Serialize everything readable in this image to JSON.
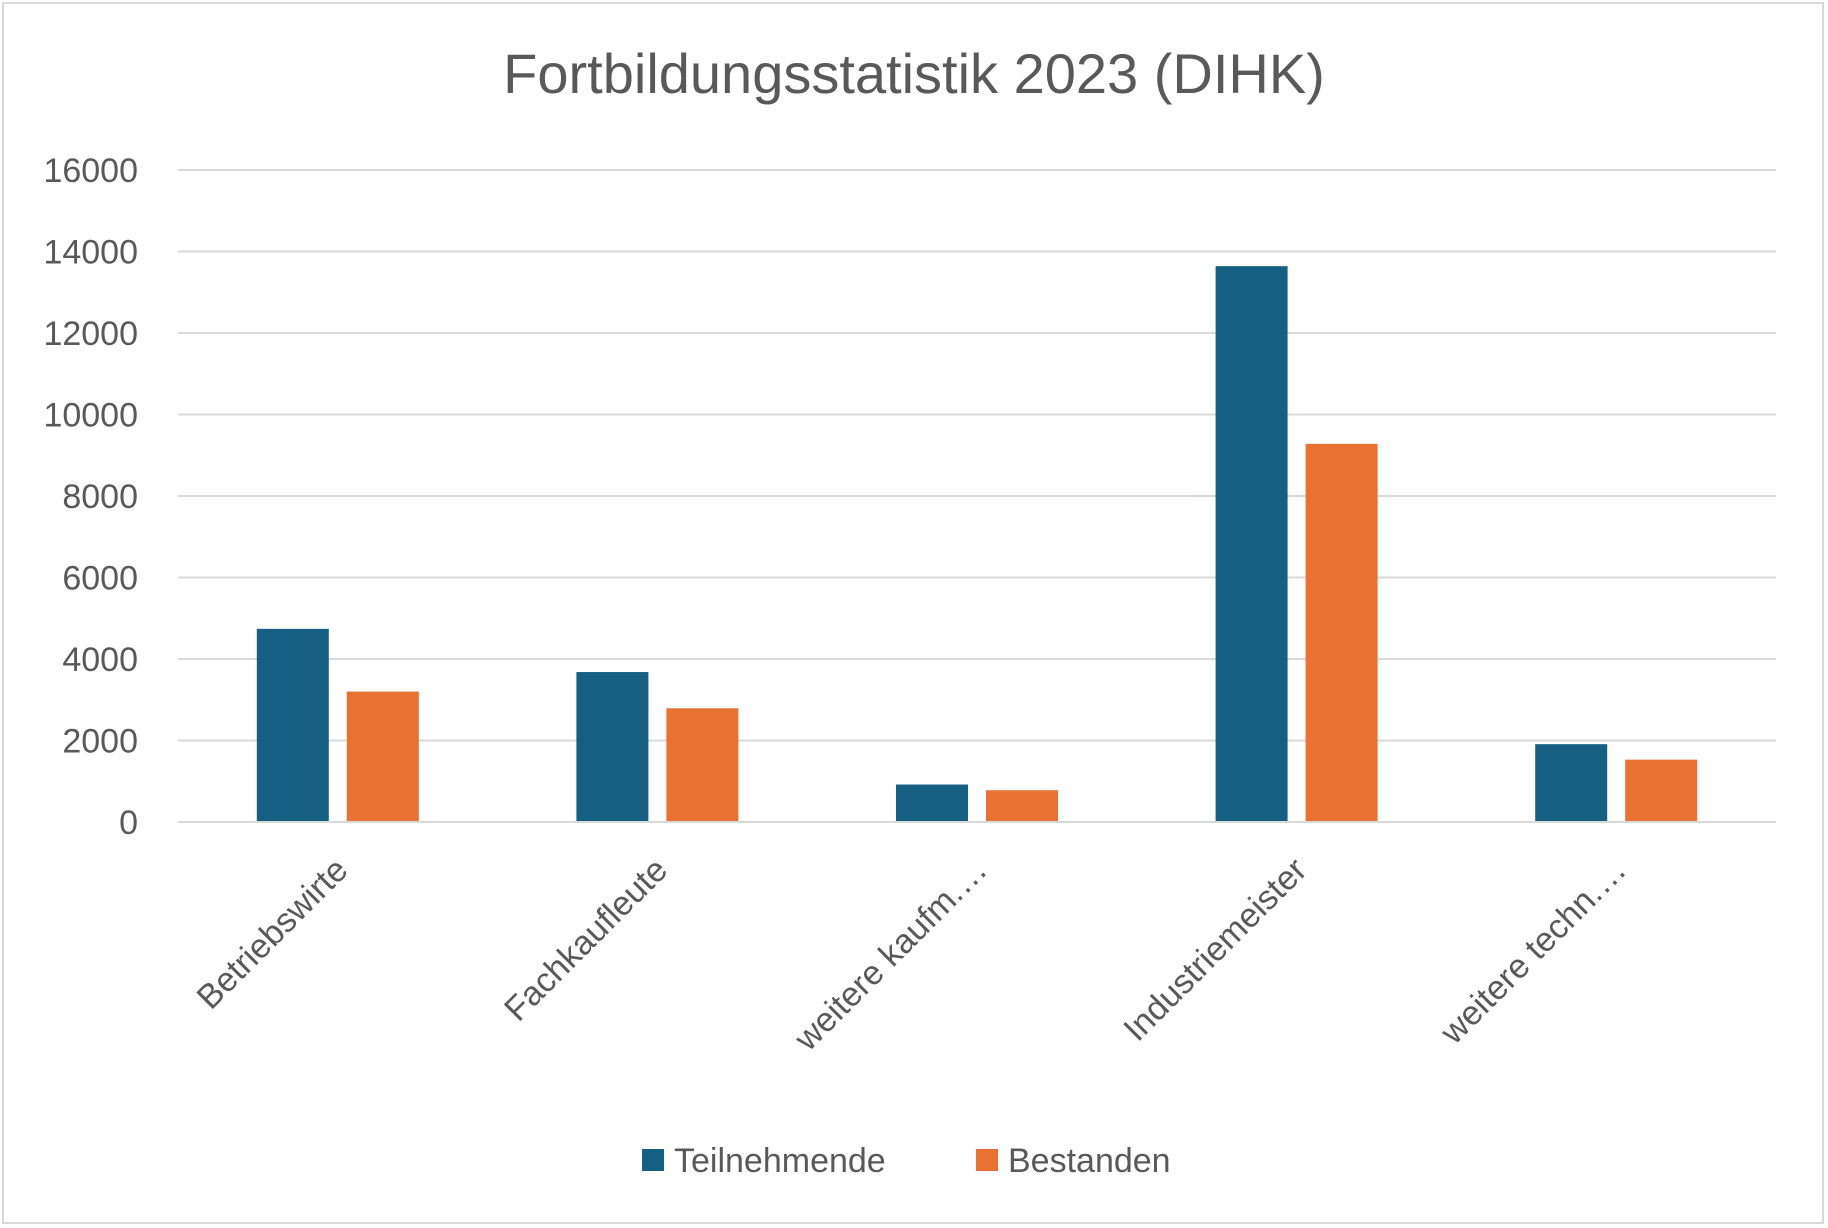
{
  "chart_data": {
    "type": "bar",
    "title": "Fortbildungsstatistik 2023 (DIHK)",
    "xlabel": "",
    "ylabel": "",
    "ylim": [
      0,
      16000
    ],
    "yticks": [
      "0",
      "2000",
      "4000",
      "6000",
      "8000",
      "10000",
      "12000",
      "14000",
      "16000"
    ],
    "categories": [
      "Betriebswirte",
      "Fachkaufleute",
      "weitere kaufm.…",
      "Industriemeister",
      "weitere techn.…"
    ],
    "series": [
      {
        "name": "Teilnehmende",
        "color": "#156082",
        "values": [
          4740,
          3680,
          920,
          13640,
          1910
        ]
      },
      {
        "name": "Bestanden",
        "color": "#E97132",
        "values": [
          3200,
          2790,
          780,
          9280,
          1530
        ]
      }
    ],
    "grid": true,
    "legend_position": "bottom"
  }
}
